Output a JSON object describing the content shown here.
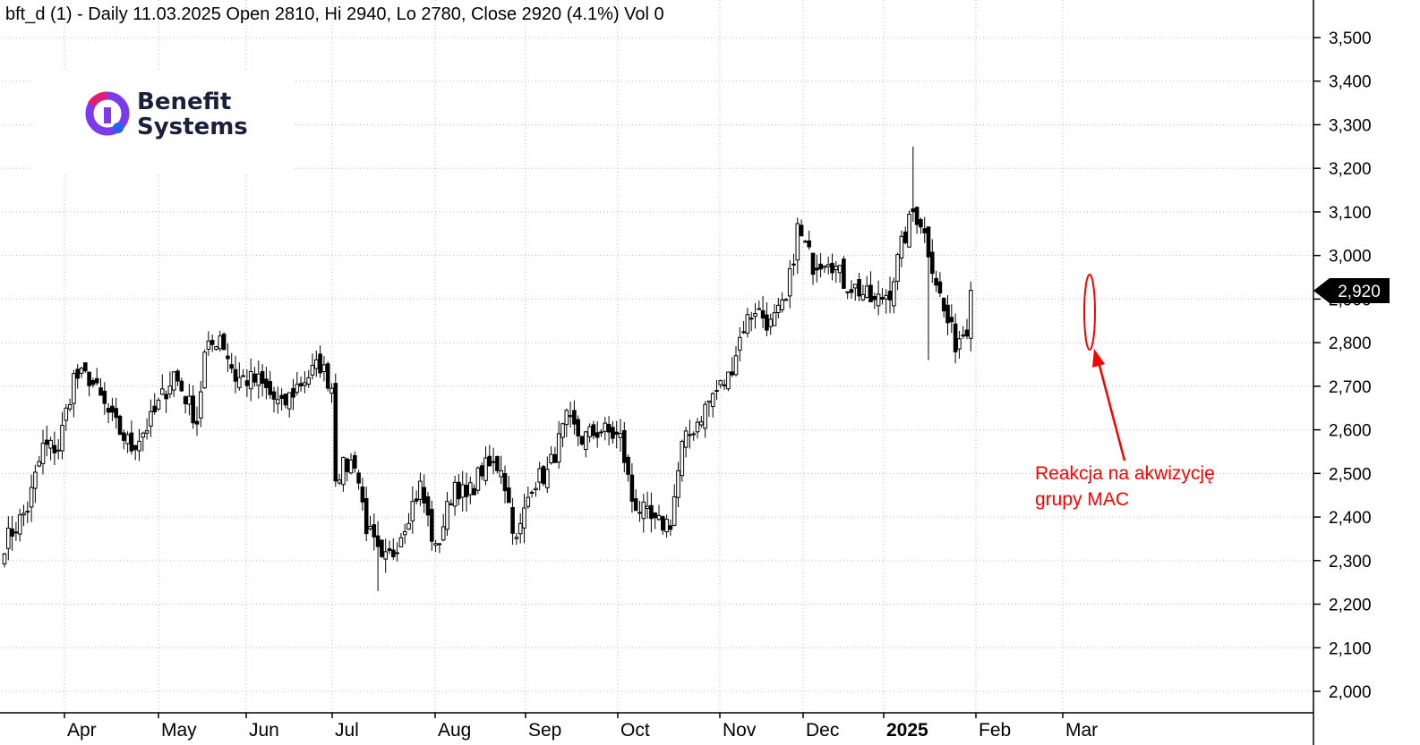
{
  "header": {
    "title": "bft_d (1) - Daily 11.03.2025 Open 2810, Hi 2940, Lo 2780, Close 2920 (4.1%) Vol 0"
  },
  "logo": {
    "line1": "Benefit",
    "line2": "Systems",
    "colors": [
      "#e11d74",
      "#7c3aed",
      "#2563eb"
    ]
  },
  "price_tag": {
    "value": "2,920"
  },
  "annotation": {
    "line1": "Reakcja na akwizycję",
    "line2": "grupy MAC",
    "color": "#ff0000"
  },
  "chart_data": {
    "type": "candlestick",
    "title": "bft_d (1) - Daily 11.03.2025 Open 2810, Hi 2940, Lo 2780, Close 2920 (4.1%) Vol 0",
    "ylim": [
      1950,
      3550
    ],
    "y_ticks": [
      {
        "value": 2000,
        "label": "2,000"
      },
      {
        "value": 2100,
        "label": "2,100"
      },
      {
        "value": 2200,
        "label": "2,200"
      },
      {
        "value": 2300,
        "label": "2,300"
      },
      {
        "value": 2400,
        "label": "2,400"
      },
      {
        "value": 2500,
        "label": "2,500"
      },
      {
        "value": 2600,
        "label": "2,600"
      },
      {
        "value": 2700,
        "label": "2,700"
      },
      {
        "value": 2800,
        "label": "2,800"
      },
      {
        "value": 2900,
        "label": "2,900"
      },
      {
        "value": 3000,
        "label": "3,000"
      },
      {
        "value": 3100,
        "label": "3,100"
      },
      {
        "value": 3200,
        "label": "3,200"
      },
      {
        "value": 3300,
        "label": "3,300"
      },
      {
        "value": 3400,
        "label": "3,400"
      },
      {
        "value": 3500,
        "label": "3,500"
      }
    ],
    "x_ticks": [
      {
        "label": "Apr",
        "bold": false
      },
      {
        "label": "May",
        "bold": false
      },
      {
        "label": "Jun",
        "bold": false
      },
      {
        "label": "Jul",
        "bold": false
      },
      {
        "label": "Aug",
        "bold": false
      },
      {
        "label": "Sep",
        "bold": false
      },
      {
        "label": "Oct",
        "bold": false
      },
      {
        "label": "Nov",
        "bold": false
      },
      {
        "label": "Dec",
        "bold": false
      },
      {
        "label": "2025",
        "bold": true
      },
      {
        "label": "Feb",
        "bold": false
      },
      {
        "label": "Mar",
        "bold": false
      }
    ],
    "grid": true,
    "last_close": 2920,
    "anchors": [
      {
        "i": 0,
        "p": 2340
      },
      {
        "i": 6,
        "p": 2420
      },
      {
        "i": 10,
        "p": 2560
      },
      {
        "i": 14,
        "p": 2560
      },
      {
        "i": 18,
        "p": 2720
      },
      {
        "i": 22,
        "p": 2720
      },
      {
        "i": 28,
        "p": 2620
      },
      {
        "i": 33,
        "p": 2560
      },
      {
        "i": 38,
        "p": 2620
      },
      {
        "i": 44,
        "p": 2730
      },
      {
        "i": 50,
        "p": 2620
      },
      {
        "i": 52,
        "p": 2770
      },
      {
        "i": 56,
        "p": 2820
      },
      {
        "i": 60,
        "p": 2720
      },
      {
        "i": 66,
        "p": 2710
      },
      {
        "i": 72,
        "p": 2650
      },
      {
        "i": 76,
        "p": 2700
      },
      {
        "i": 82,
        "p": 2750
      },
      {
        "i": 85,
        "p": 2700
      },
      {
        "i": 86,
        "p": 2500
      },
      {
        "i": 91,
        "p": 2530
      },
      {
        "i": 94,
        "p": 2380
      },
      {
        "i": 98,
        "p": 2290
      },
      {
        "i": 101,
        "p": 2320
      },
      {
        "i": 105,
        "p": 2410
      },
      {
        "i": 108,
        "p": 2470
      },
      {
        "i": 112,
        "p": 2320
      },
      {
        "i": 117,
        "p": 2480
      },
      {
        "i": 120,
        "p": 2440
      },
      {
        "i": 124,
        "p": 2510
      },
      {
        "i": 129,
        "p": 2520
      },
      {
        "i": 133,
        "p": 2340
      },
      {
        "i": 137,
        "p": 2480
      },
      {
        "i": 141,
        "p": 2500
      },
      {
        "i": 146,
        "p": 2620
      },
      {
        "i": 150,
        "p": 2580
      },
      {
        "i": 155,
        "p": 2600
      },
      {
        "i": 160,
        "p": 2580
      },
      {
        "i": 163,
        "p": 2440
      },
      {
        "i": 169,
        "p": 2380
      },
      {
        "i": 173,
        "p": 2390
      },
      {
        "i": 176,
        "p": 2560
      },
      {
        "i": 180,
        "p": 2620
      },
      {
        "i": 184,
        "p": 2680
      },
      {
        "i": 188,
        "p": 2720
      },
      {
        "i": 192,
        "p": 2840
      },
      {
        "i": 195,
        "p": 2880
      },
      {
        "i": 199,
        "p": 2840
      },
      {
        "i": 203,
        "p": 2890
      },
      {
        "i": 206,
        "p": 3060
      },
      {
        "i": 210,
        "p": 2980
      },
      {
        "i": 214,
        "p": 3000
      },
      {
        "i": 218,
        "p": 2940
      },
      {
        "i": 222,
        "p": 2920
      },
      {
        "i": 226,
        "p": 2890
      },
      {
        "i": 230,
        "p": 2920
      },
      {
        "i": 233,
        "p": 3020
      },
      {
        "i": 236,
        "p": 3100
      },
      {
        "i": 238,
        "p": 3080
      },
      {
        "i": 241,
        "p": 2980
      },
      {
        "i": 244,
        "p": 2870
      },
      {
        "i": 247,
        "p": 2800
      },
      {
        "i": 250,
        "p": 2840
      },
      {
        "i": 251,
        "p": 2810
      }
    ],
    "last_candle": {
      "open": 2810,
      "high": 2940,
      "low": 2780,
      "close": 2920
    }
  }
}
